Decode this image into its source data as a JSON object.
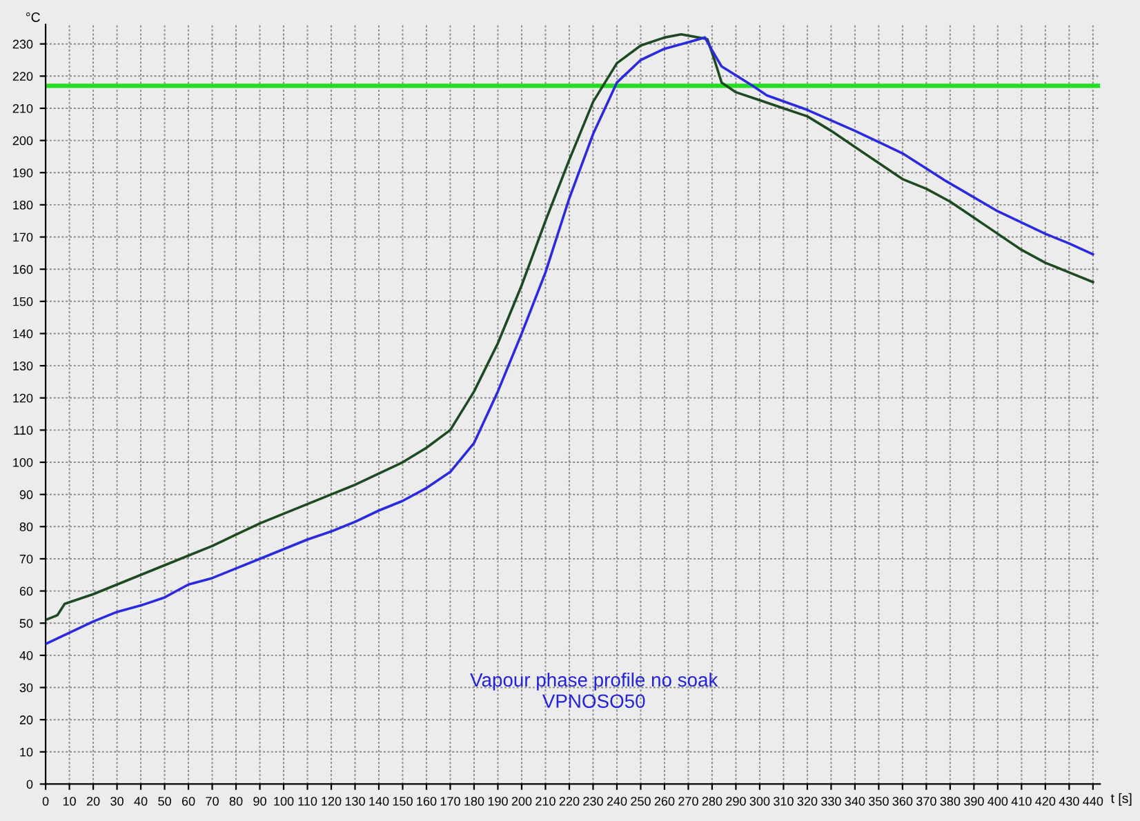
{
  "chart_data": {
    "type": "line",
    "xlabel": "t [s]",
    "ylabel": "°C",
    "annotations": [
      "Vapour phase profile no soak",
      "VPNOSO50"
    ],
    "xlim": [
      0,
      443
    ],
    "ylim": [
      0,
      236
    ],
    "xticks": [
      0,
      10,
      20,
      30,
      40,
      50,
      60,
      70,
      80,
      90,
      100,
      110,
      120,
      130,
      140,
      150,
      160,
      170,
      180,
      190,
      200,
      210,
      220,
      230,
      240,
      250,
      260,
      270,
      280,
      290,
      300,
      310,
      320,
      330,
      340,
      350,
      360,
      370,
      380,
      390,
      400,
      410,
      420,
      430,
      440
    ],
    "yticks": [
      0,
      10,
      20,
      30,
      40,
      50,
      60,
      70,
      80,
      90,
      100,
      110,
      120,
      130,
      140,
      150,
      160,
      170,
      180,
      190,
      200,
      210,
      220,
      230
    ],
    "grid": true,
    "line_style": "solid",
    "marker": "none",
    "ref_lines": [
      {
        "axis": "y",
        "value": 217,
        "color": "#22dd22"
      }
    ],
    "series": [
      {
        "color": "#1e4a22",
        "x": [
          0,
          5,
          8,
          20,
          30,
          40,
          50,
          60,
          70,
          80,
          90,
          100,
          110,
          120,
          130,
          140,
          150,
          160,
          170,
          180,
          190,
          200,
          210,
          220,
          230,
          240,
          250,
          260,
          267,
          278,
          281,
          284,
          290,
          300,
          310,
          320,
          330,
          340,
          350,
          360,
          370,
          380,
          390,
          400,
          410,
          420,
          430,
          440
        ],
        "values": [
          51,
          52.5,
          56,
          59,
          62,
          65,
          68,
          71,
          74,
          77.5,
          81,
          84,
          87,
          90,
          93,
          96.5,
          100,
          104.5,
          110,
          122,
          137,
          155,
          175,
          194,
          212,
          224,
          229.5,
          232,
          233,
          231.5,
          225,
          218,
          215,
          212.5,
          210,
          207.5,
          203,
          198,
          193,
          188,
          185,
          181,
          176,
          171,
          166,
          162,
          159,
          156
        ]
      },
      {
        "color": "#2b2bdd",
        "x": [
          0,
          10,
          20,
          30,
          40,
          50,
          60,
          70,
          80,
          90,
          100,
          110,
          120,
          130,
          140,
          150,
          160,
          170,
          180,
          190,
          200,
          210,
          220,
          230,
          240,
          250,
          260,
          270,
          277,
          280,
          284,
          297,
          303,
          320,
          340,
          360,
          378,
          400,
          420,
          430,
          440
        ],
        "values": [
          43.5,
          47,
          50.5,
          53.5,
          55.5,
          58,
          62,
          64,
          67,
          70,
          73,
          76,
          78.5,
          81.5,
          85,
          88,
          92,
          97,
          106,
          122,
          140,
          159,
          182,
          202,
          218,
          225,
          228.5,
          230.5,
          232,
          228,
          223,
          217,
          214,
          209.5,
          203,
          196,
          187.5,
          178,
          171,
          168,
          164.6
        ]
      }
    ]
  }
}
